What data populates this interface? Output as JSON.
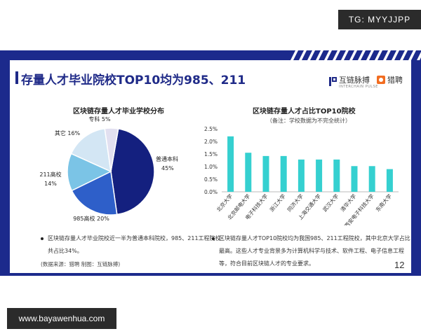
{
  "watermark_top": "TG: MYYJJPP",
  "watermark_bottom": "www.bayawenhua.com",
  "slide": {
    "title": "存量人才毕业院校TOP10均为985、211",
    "page_number": "12",
    "brand_left": {
      "name": "互链脉搏",
      "sub": "INTERCHAIN PULSE"
    },
    "brand_right": {
      "name": "猎聘"
    },
    "source": "(数据来源：猎聘   制图：互链脉搏)"
  },
  "colors": {
    "navy": "#1c2a8c",
    "pie": [
      "#14207f",
      "#2e5fc9",
      "#7bc4e6",
      "#d3e6f4",
      "#e2e0f0"
    ],
    "bar": "#35d0d0"
  },
  "chart_data": [
    {
      "type": "pie",
      "title": "区块链存量人才毕业学校分布",
      "slices": [
        {
          "label": "普通本科",
          "value": 45,
          "pct_label": "45%"
        },
        {
          "label": "985高校",
          "value": 20,
          "pct_label": "20%"
        },
        {
          "label": "211高校",
          "value": 14,
          "pct_label": "14%"
        },
        {
          "label": "其它",
          "value": 16,
          "pct_label": "16%"
        },
        {
          "label": "专科",
          "value": 5,
          "pct_label": "5%"
        }
      ]
    },
    {
      "type": "bar",
      "title": "区块链存量人才占比TOP10院校",
      "note": "（备注：学校数据为不完全统计）",
      "categories": [
        "北京大学",
        "北京邮电大学",
        "电子科技大学",
        "浙江大学",
        "同济大学",
        "上海交通大学",
        "武汉大学",
        "清华大学",
        "西安电子科技大学",
        "东南大学"
      ],
      "values": [
        2.2,
        1.55,
        1.42,
        1.42,
        1.28,
        1.28,
        1.28,
        1.02,
        1.02,
        0.9
      ],
      "ylim": [
        0,
        2.5
      ],
      "yticks": [
        "0.0%",
        "0.5%",
        "1.0%",
        "1.5%",
        "2.0%",
        "2.5%"
      ]
    }
  ],
  "bullets": {
    "left": [
      "区块链存量人才毕业院校近一半为普通本科院校，985、211工程院校",
      "共占比34%。"
    ],
    "right": [
      "区块链存量人才TOP10院校均为我国985、211工程院校，其中北京大学占比",
      "最高。这些人才专业背景多为计算机科学与技术、软件工程、电子信息工程",
      "等，符合目前区块链人才的专业要求。"
    ]
  }
}
